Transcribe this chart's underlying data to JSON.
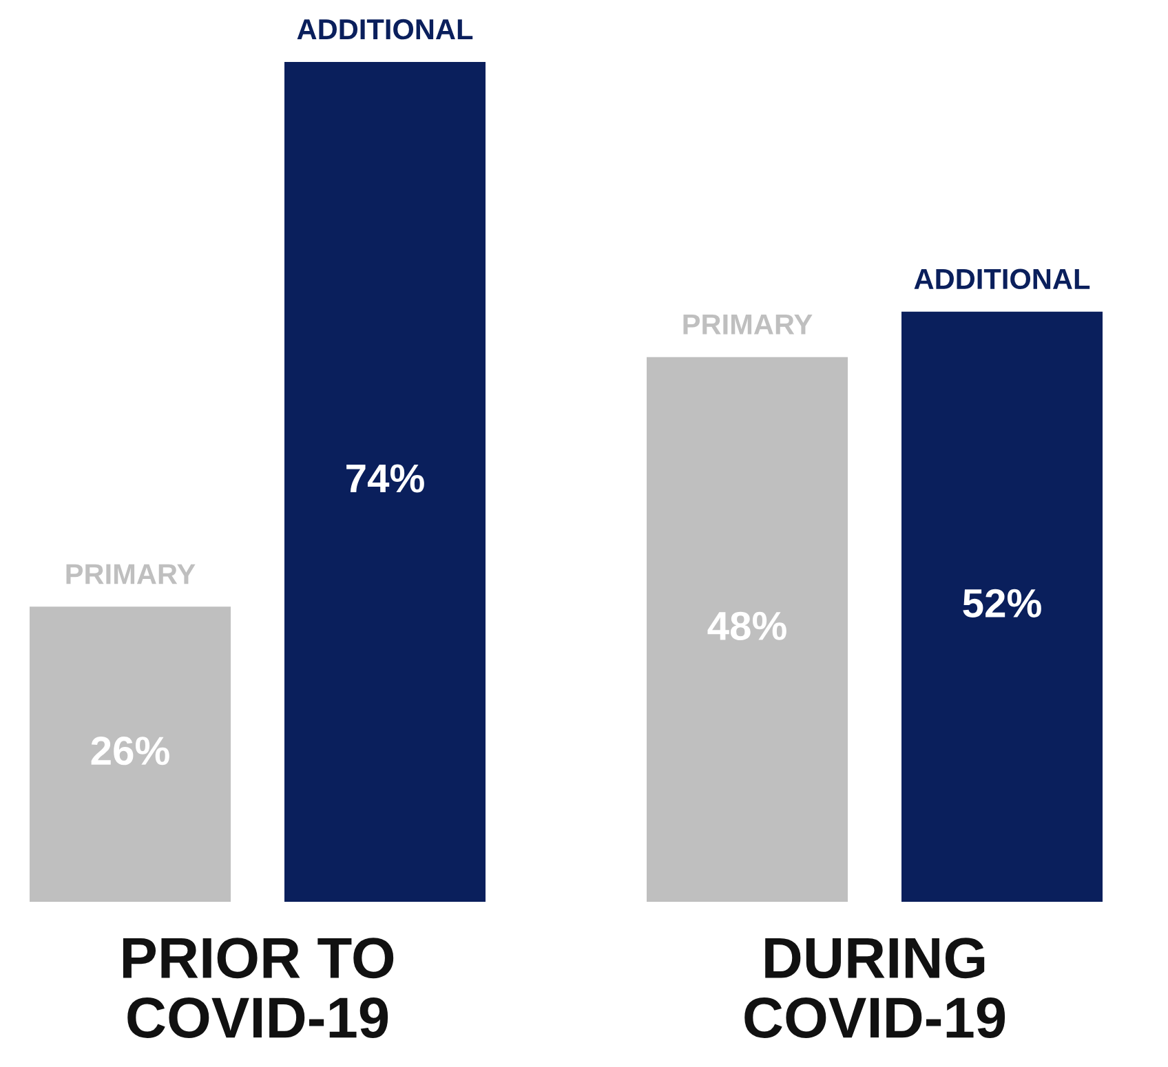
{
  "chart_data": {
    "type": "bar",
    "categories": [
      "PRIOR TO COVID-19",
      "DURING COVID-19"
    ],
    "series": [
      {
        "name": "PRIMARY",
        "color": "#bfbfbf",
        "values": [
          26,
          48
        ],
        "value_labels": [
          "26%",
          "48%"
        ]
      },
      {
        "name": "ADDITIONAL",
        "color": "#0a1f5c",
        "values": [
          74,
          52
        ],
        "value_labels": [
          "74%",
          "52%"
        ]
      }
    ],
    "grid": false,
    "legend": false
  }
}
